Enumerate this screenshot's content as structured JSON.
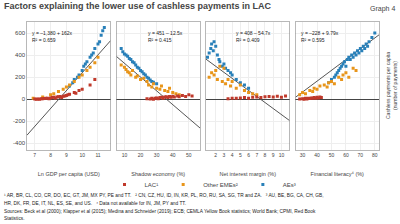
{
  "chart_data": {
    "type": "scatter",
    "title": "Factors explaining the lower use of cashless payments in LAC",
    "subtitle": "Graph 4",
    "ylabel": "Cashless payments per capita\n(number of payments)",
    "ylim": [
      -460,
      700
    ],
    "yticks": [
      -400,
      -200,
      0,
      200,
      400,
      600
    ],
    "grid": true,
    "footnotes": [
      "¹ AR, BR, CL, CO, CR, DO, EC, GT, JM, MX PY, PE and TT.   ² CN, CZ, HU, ID, IN, KR, PL, RO, RU, SA, SG, TR and ZA.   ³ AU, BE, BG, CA, CH, GB,",
      "HR, DK, FR, DE, IT, NL, ES, SE, and US.   ⁴ Data not available for IN, JM, PY and TT.",
      "Sources: Beck et al (2000); Klapper et al (2015); Medina and Schneider (2019); ECB; CEMLA Yellow Book statistics; World Bank; CPMI, Red Book",
      "Statistics."
    ],
    "panels": [
      {
        "xlabel": "Ln GDP per capita (USD)",
        "xlim": [
          6.5,
          11.8
        ],
        "xticks": [
          7,
          8,
          9,
          10,
          11
        ],
        "annotations": [
          "y = –1,380 + 162x",
          "R² = 0.659"
        ],
        "series": [
          {
            "name": "LAC¹",
            "color": "#c0392b",
            "marker": "square",
            "x": [
              7.0,
              7.1,
              7.2,
              7.3,
              7.4,
              7.5,
              7.6,
              7.7,
              7.8,
              7.9,
              8.0,
              8.1,
              8.2,
              8.3,
              8.4,
              8.5,
              8.6,
              8.7,
              8.8,
              8.9,
              9.0,
              9.1,
              9.2,
              9.5,
              9.6,
              9.8,
              10.0,
              10.5,
              10.8
            ],
            "values": [
              2,
              0,
              3,
              1,
              5,
              4,
              6,
              8,
              10,
              5,
              12,
              15,
              18,
              10,
              20,
              22,
              25,
              15,
              28,
              30,
              35,
              40,
              45,
              60,
              55,
              80,
              90,
              130,
              180
            ]
          },
          {
            "name": "Other EMEs²",
            "color": "#e8951a",
            "marker": "square",
            "x": [
              6.9,
              7.5,
              8.0,
              8.2,
              8.5,
              8.8,
              9.0,
              9.2,
              9.5,
              9.8,
              10.0,
              10.3,
              10.5,
              10.8,
              11.0
            ],
            "values": [
              8,
              20,
              40,
              50,
              70,
              90,
              110,
              130,
              160,
              200,
              220,
              260,
              290,
              330,
              380
            ]
          },
          {
            "name": "AEs³",
            "color": "#2980b9",
            "marker": "square",
            "x": [
              9.2,
              9.4,
              9.5,
              9.7,
              9.8,
              10.0,
              10.1,
              10.2,
              10.3,
              10.5,
              10.6,
              10.7,
              10.8,
              11.0,
              11.1,
              11.2,
              11.3,
              11.4
            ],
            "values": [
              120,
              150,
              180,
              200,
              220,
              260,
              300,
              320,
              340,
              380,
              400,
              420,
              460,
              500,
              520,
              580,
              620,
              650
            ]
          },
          {
            "type": "line",
            "color": "#555555",
            "line_style": "solid",
            "x": [
              6.5,
              11.8
            ],
            "values": [
              -327,
              531.6
            ]
          }
        ]
      },
      {
        "xlabel": "Shadow economy (%)",
        "xlim": [
          5,
          57
        ],
        "xticks": [
          10,
          20,
          30,
          40,
          50
        ],
        "tick_labels": "x",
        "annotations": [
          "y = 451 – 12.5x",
          "R² = 0.415"
        ],
        "series": [
          {
            "name": "LAC¹",
            "color": "#c0392b",
            "marker": "square",
            "x": [
              24,
              26,
              27,
              28,
              29,
              30,
              31,
              32,
              33,
              34,
              35,
              36,
              37,
              38,
              39,
              40,
              41,
              43,
              44,
              46,
              48,
              50,
              52
            ],
            "values": [
              5,
              3,
              8,
              0,
              10,
              12,
              5,
              15,
              18,
              10,
              20,
              22,
              15,
              25,
              18,
              28,
              20,
              30,
              22,
              35,
              25,
              40,
              30
            ]
          },
          {
            "name": "Other EMEs²",
            "color": "#e8951a",
            "marker": "square",
            "x": [
              8,
              10,
              11,
              12,
              13,
              14,
              15,
              17,
              18,
              20,
              22,
              24,
              25,
              27,
              28,
              30,
              32,
              33,
              35,
              37,
              38,
              40,
              42,
              44
            ],
            "values": [
              310,
              290,
              270,
              250,
              240,
              220,
              260,
              200,
              210,
              180,
              190,
              160,
              130,
              110,
              140,
              100,
              90,
              120,
              80,
              70,
              100,
              60,
              50,
              40
            ]
          },
          {
            "name": "AEs³",
            "color": "#2980b9",
            "marker": "square",
            "x": [
              8,
              9,
              10,
              11,
              12,
              13,
              14,
              15,
              16,
              17,
              18,
              19,
              20,
              21,
              22,
              23,
              24,
              25,
              26,
              27,
              28,
              30
            ],
            "values": [
              460,
              430,
              410,
              400,
              390,
              370,
              360,
              340,
              330,
              310,
              290,
              280,
              260,
              250,
              230,
              220,
              200,
              190,
              175,
              160,
              155,
              140
            ]
          },
          {
            "type": "line",
            "color": "#555555",
            "line_style": "solid",
            "x": [
              5,
              57
            ],
            "values": [
              388.5,
              -261.5
            ]
          }
        ]
      },
      {
        "xlabel": "Net interest margin (%)",
        "xlim": [
          0.8,
          11
        ],
        "xticks": [
          2,
          3,
          4,
          5,
          6,
          7,
          8,
          9,
          10
        ],
        "tick_labels": "x",
        "annotations": [
          "y = 408 – 54.7x",
          "R² = 0.409"
        ],
        "series": [
          {
            "name": "LAC¹",
            "color": "#c0392b",
            "marker": "square",
            "x": [
              3.5,
              4.0,
              4.5,
              5.0,
              5.5,
              6.0,
              6.5,
              7.0,
              7.5,
              8.0,
              8.5,
              9.0,
              9.5,
              10.0,
              10.5
            ],
            "values": [
              5,
              10,
              8,
              12,
              15,
              10,
              18,
              20,
              15,
              22,
              25,
              20,
              28,
              18,
              30
            ]
          },
          {
            "name": "Other EMEs²",
            "color": "#e8951a",
            "marker": "square",
            "x": [
              1.2,
              1.5,
              1.8,
              2.0,
              2.2,
              2.5,
              2.8,
              3.0,
              3.2,
              3.5,
              3.8,
              4.0,
              4.5,
              5.0,
              5.5,
              6.0,
              6.5,
              7.0
            ],
            "values": [
              200,
              240,
              220,
              260,
              180,
              300,
              160,
              280,
              140,
              180,
              120,
              160,
              100,
              130,
              80,
              60,
              50,
              40
            ]
          },
          {
            "name": "AEs³",
            "color": "#2980b9",
            "marker": "square",
            "x": [
              1.0,
              1.2,
              1.4,
              1.5,
              1.7,
              1.8,
              2.0,
              2.2,
              2.4,
              2.5,
              2.8,
              3.0,
              3.2,
              3.5,
              3.8,
              4.0,
              4.5,
              5.0,
              5.5,
              6.0
            ],
            "values": [
              380,
              420,
              460,
              500,
              440,
              520,
              480,
              400,
              360,
              340,
              300,
              320,
              280,
              260,
              240,
              220,
              180,
              150,
              130,
              100
            ]
          },
          {
            "type": "line",
            "color": "#555555",
            "line_style": "solid",
            "x": [
              0.8,
              11
            ],
            "values": [
              364.24,
              -193.7
            ]
          }
        ]
      },
      {
        "xlabel": "Financial literacy⁴ (%)",
        "xlim": [
          25,
          83
        ],
        "xticks": [
          30,
          40,
          50,
          60,
          70,
          80
        ],
        "tick_labels": "x",
        "annotations": [
          "y = –228 + 9.79x",
          "R² = 0.595"
        ],
        "series": [
          {
            "name": "LAC¹",
            "color": "#c0392b",
            "marker": "square",
            "x": [
              28,
              30,
              31,
              32,
              33,
              34,
              35,
              36,
              37,
              38,
              39,
              40,
              41,
              42,
              43
            ],
            "values": [
              2,
              5,
              0,
              8,
              3,
              10,
              6,
              12,
              8,
              15,
              10,
              18,
              12,
              20,
              15
            ]
          },
          {
            "name": "Other EMEs²",
            "color": "#e8951a",
            "marker": "square",
            "x": [
              28,
              30,
              32,
              35,
              37,
              38,
              40,
              42,
              45,
              47,
              48,
              50,
              52,
              55,
              57,
              58,
              60,
              62,
              65,
              67
            ],
            "values": [
              40,
              60,
              50,
              80,
              70,
              100,
              90,
              120,
              130,
              110,
              150,
              160,
              140,
              200,
              180,
              220,
              240,
              200,
              280,
              260
            ]
          },
          {
            "name": "AEs³",
            "color": "#2980b9",
            "marker": "square",
            "x": [
              48,
              50,
              52,
              53,
              54,
              55,
              56,
              57,
              58,
              59,
              60,
              61,
              62,
              63,
              64,
              65,
              66,
              67,
              68,
              69,
              70,
              71,
              72,
              73,
              74,
              75,
              76,
              78,
              80
            ],
            "values": [
              150,
              180,
              200,
              220,
              240,
              260,
              280,
              300,
              320,
              340,
              300,
              360,
              380,
              360,
              400,
              380,
              420,
              400,
              440,
              420,
              460,
              440,
              480,
              460,
              500,
              480,
              520,
              560,
              600
            ]
          },
          {
            "type": "line",
            "color": "#555555",
            "line_style": "solid",
            "x": [
              25,
              83
            ],
            "values": [
              16.75,
              584.57
            ]
          }
        ]
      }
    ]
  }
}
